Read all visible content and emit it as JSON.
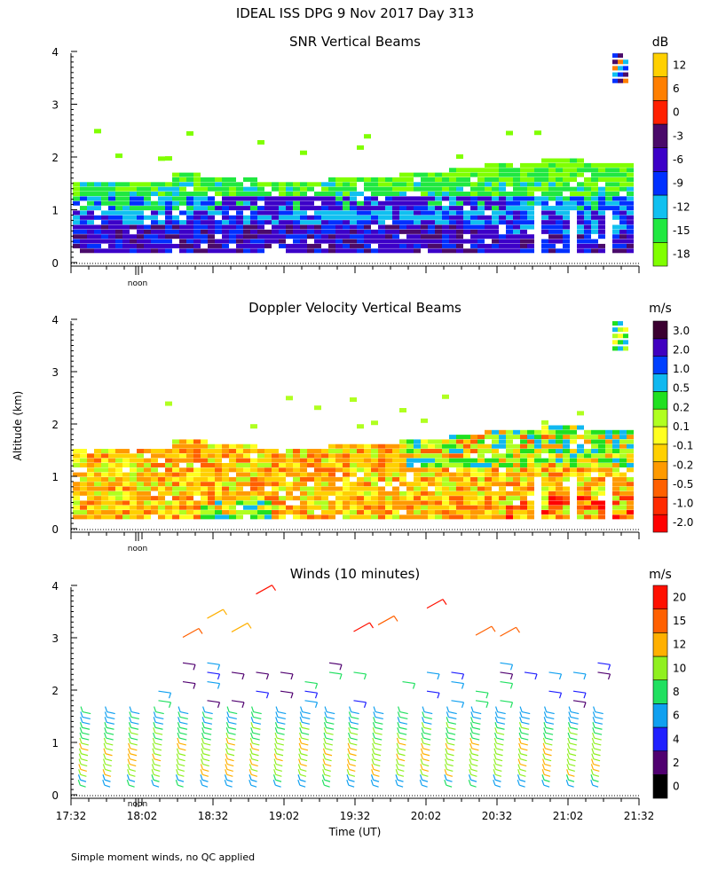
{
  "title": "IDEAL ISS DPG    9 Nov 2017 Day 313",
  "y_axis_label": "Altitude (km)",
  "x_axis_label": "Time (UT)",
  "footnote": "Simple moment winds, no QC applied",
  "noon_label": "noon",
  "colors": {
    "snr": [
      "#80ff00",
      "#20e840",
      "#10c0f0",
      "#0030ff",
      "#3c00c8",
      "#4a0a6a",
      "#ff2000",
      "#ff7f00",
      "#ffd000"
    ],
    "vel": [
      "#ff0000",
      "#ff2a00",
      "#ff6000",
      "#ff9a00",
      "#ffd000",
      "#ffff20",
      "#b0ff20",
      "#20e020",
      "#10b8f0",
      "#0040ff",
      "#4000c0",
      "#3a0030"
    ],
    "wind": [
      "#000000",
      "#500070",
      "#2020ff",
      "#10a0f0",
      "#20e060",
      "#90f020",
      "#ffb000",
      "#ff6000",
      "#ff1000"
    ]
  },
  "chart_data": [
    {
      "type": "heatmap",
      "title": "SNR Vertical Beams",
      "units": "dB",
      "xlabel": "Time (UT)",
      "ylabel": "Altitude (km)",
      "ylim": [
        0,
        4
      ],
      "y_ticks": [
        "0",
        "1",
        "2",
        "3",
        "4"
      ],
      "colorbar_ticks": [
        "12",
        "6",
        "0",
        "-3",
        "-6",
        "-9",
        "-12",
        "-15",
        "-18"
      ]
    },
    {
      "type": "heatmap",
      "title": "Doppler Velocity Vertical Beams",
      "units": "m/s",
      "xlabel": "Time (UT)",
      "ylabel": "Altitude (km)",
      "ylim": [
        0,
        4
      ],
      "y_ticks": [
        "0",
        "1",
        "2",
        "3",
        "4"
      ],
      "colorbar_ticks": [
        "3.0",
        "2.0",
        "1.0",
        "0.5",
        "0.2",
        "0.1",
        "-0.1",
        "-0.2",
        "-0.5",
        "-1.0",
        "-2.0"
      ]
    },
    {
      "type": "scatter",
      "title": "Winds (10 minutes)",
      "units": "m/s",
      "xlabel": "Time (UT)",
      "ylabel": "Altitude (km)",
      "ylim": [
        0,
        4
      ],
      "y_ticks": [
        "0",
        "1",
        "2",
        "3",
        "4"
      ],
      "colorbar_ticks": [
        "20",
        "15",
        "12",
        "10",
        "8",
        "6",
        "4",
        "2",
        "0"
      ],
      "x_ticks": [
        "17:32",
        "18:02",
        "18:32",
        "19:02",
        "19:32",
        "20:02",
        "20:32",
        "21:02",
        "21:32"
      ]
    }
  ]
}
